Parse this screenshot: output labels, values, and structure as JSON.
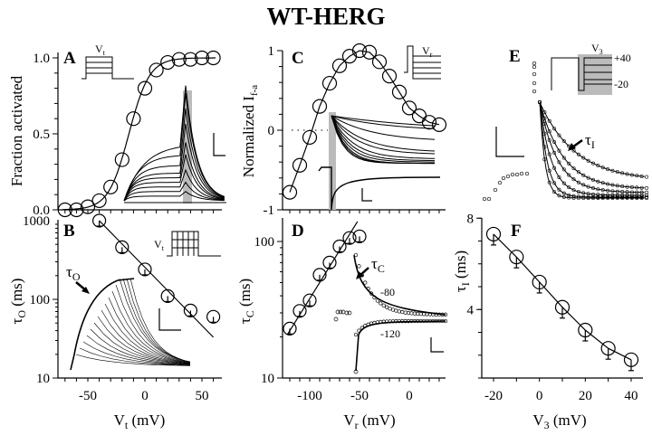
{
  "figure_title": "WT-HERG",
  "chart_data": [
    {
      "panel": "A",
      "type": "line",
      "xlabel": "V_t (mV)",
      "ylabel": "Fraction activated",
      "xlim": [
        -76,
        66
      ],
      "ylim": [
        0,
        1
      ],
      "xticks": [
        -50,
        0,
        50
      ],
      "ytick_labels": [
        "0.0",
        "0.5",
        "1.0"
      ],
      "yticks": [
        0,
        0.5,
        1.0
      ],
      "x": [
        -70,
        -60,
        -50,
        -40,
        -30,
        -20,
        -10,
        0,
        10,
        20,
        30,
        40,
        50,
        60
      ],
      "series": [
        {
          "name": "Fraction activated",
          "values": [
            0.0,
            0.0,
            0.02,
            0.06,
            0.15,
            0.33,
            0.6,
            0.8,
            0.92,
            0.97,
            0.99,
            0.99,
            1.0,
            1.0
          ]
        }
      ],
      "fit": "Boltzmann",
      "inset_label": "V_t",
      "grid": false
    },
    {
      "panel": "B",
      "type": "line",
      "yscale": "log",
      "xlabel": "V_t (mV)",
      "ylabel": "τ_O (ms)",
      "xlim": [
        -76,
        66
      ],
      "ylim": [
        10,
        1000
      ],
      "xticks": [
        -50,
        0,
        50
      ],
      "yticks": [
        10,
        100,
        1000
      ],
      "x": [
        -40,
        -20,
        0,
        20,
        40,
        60
      ],
      "series": [
        {
          "name": "τ_O",
          "values": [
            1000,
            460,
            240,
            110,
            72,
            60
          ]
        }
      ],
      "fit_line": {
        "x": [
          -40,
          60
        ],
        "y": [
          1000,
          33
        ]
      },
      "annotation": "τ_O",
      "inset_label": "V_t",
      "grid": false
    },
    {
      "panel": "C",
      "type": "line",
      "xlabel": "V_r (mV)",
      "ylabel": "Normalized I_f-a",
      "xlim": [
        -125,
        35
      ],
      "ylim": [
        -1,
        1
      ],
      "yticks": [
        -1,
        0,
        1
      ],
      "x": [
        -120,
        -110,
        -100,
        -90,
        -80,
        -70,
        -60,
        -50,
        -40,
        -30,
        -20,
        -10,
        0,
        10,
        20,
        30
      ],
      "series": [
        {
          "name": "Normalized I_f-a",
          "values": [
            -0.78,
            -0.44,
            -0.09,
            0.3,
            0.59,
            0.81,
            0.93,
            1.0,
            0.98,
            0.86,
            0.68,
            0.48,
            0.28,
            0.18,
            0.1,
            0.07
          ]
        }
      ],
      "inset_label": "V_r",
      "grid": false
    },
    {
      "panel": "D",
      "type": "line",
      "yscale": "log",
      "xlabel": "V_r (mV)",
      "ylabel": "τ_C (ms)",
      "xlim": [
        -125,
        35
      ],
      "ylim": [
        10,
        130
      ],
      "xticks": [
        -100,
        -50,
        0
      ],
      "yticks": [
        10,
        100
      ],
      "x": [
        -120,
        -110,
        -100,
        -90,
        -80,
        -70,
        -60,
        -50
      ],
      "series": [
        {
          "name": "τ_C",
          "values": [
            23,
            31,
            37,
            57,
            70,
            92,
            106,
            109
          ]
        }
      ],
      "annotations": [
        "τ_C",
        "-80",
        "-120"
      ],
      "grid": false
    },
    {
      "panel": "E",
      "type": "scatter",
      "annotations": [
        "τ_I",
        "V_3",
        "+40",
        "-20"
      ],
      "grid": false
    },
    {
      "panel": "F",
      "type": "line",
      "xlabel": "V_3 (mV)",
      "ylabel": "τ_I (ms)",
      "xlim": [
        -25,
        45
      ],
      "ylim": [
        1,
        8
      ],
      "xticks": [
        -20,
        0,
        20,
        40
      ],
      "yticks": [
        4,
        8
      ],
      "x": [
        -20,
        -10,
        0,
        10,
        20,
        30,
        40
      ],
      "series": [
        {
          "name": "τ_I",
          "values": [
            7.3,
            6.3,
            5.2,
            4.1,
            3.1,
            2.3,
            1.8
          ]
        }
      ],
      "grid": false
    }
  ],
  "labels": {
    "A": "A",
    "B": "B",
    "C": "C",
    "D": "D",
    "E": "E",
    "F": "F",
    "ylabA": "Fraction activated",
    "ylabB_tau": "τ",
    "ylabB_sub": "O",
    "ylabB_rest": " (ms)",
    "ylabC_main": "Normalized I",
    "ylabC_sub": "f-a",
    "ylabD_tau": "τ",
    "ylabD_sub": "C",
    "ylabD_rest": " (ms)",
    "ylabF_tau": "τ",
    "ylabF_sub": "I",
    "ylabF_rest": " (ms)",
    "xlabAB_main": "V",
    "xlabAB_sub": "t",
    "xlabAB_rest": " (mV)",
    "xlabCD_main": "V",
    "xlabCD_sub": "r",
    "xlabCD_rest": " (mV)",
    "xlabF_main": "V",
    "xlabF_sub": "3",
    "xlabF_rest": " (mV)",
    "tauO_main": "τ",
    "tauO_sub": "O",
    "tauC_main": "τ",
    "tauC_sub": "C",
    "tauI_main": "τ",
    "tauI_sub": "I",
    "d_neg80": "-80",
    "d_neg120": "-120",
    "e_pos40": "+40",
    "e_neg20": "-20",
    "e_V3_main": "V",
    "e_V3_sub": "3",
    "a_Vt_main": "V",
    "a_Vt_sub": "t",
    "b_Vt_main": "V",
    "b_Vt_sub": "t",
    "c_Vr_main": "V",
    "c_Vr_sub": "r"
  }
}
